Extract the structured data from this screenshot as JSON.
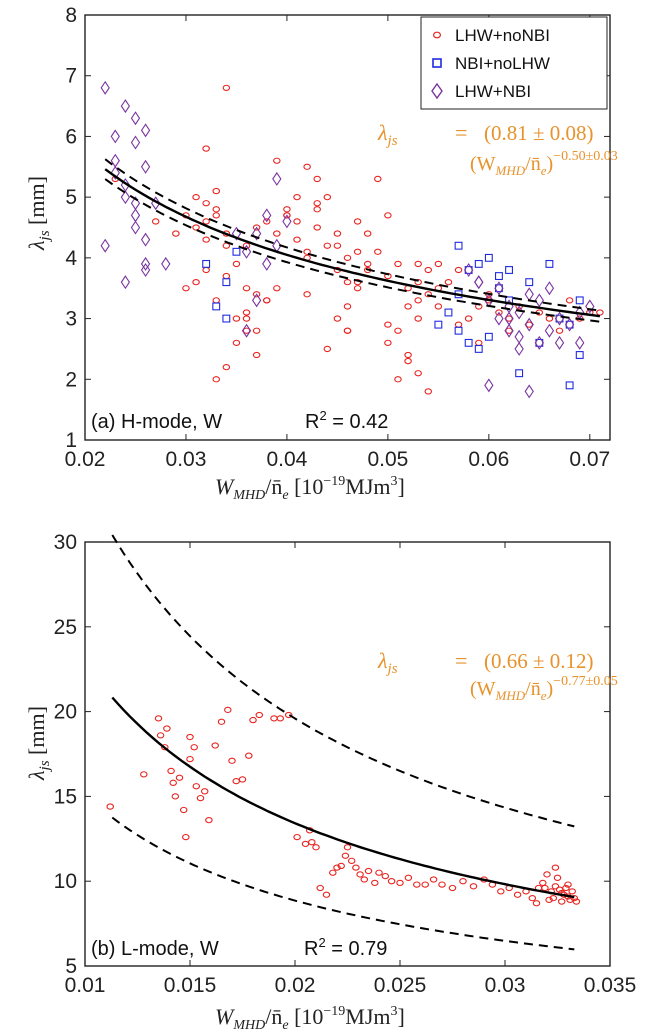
{
  "chart_data": [
    {
      "type": "scatter",
      "panel_label": "(a) H-mode, W",
      "r2_label": "R",
      "r2_sup": "2",
      "r2_value": " = 0.42",
      "xlabel_main": "W",
      "xlabel_sub": "MHD",
      "xlabel_tail": "/n̄",
      "xlabel_sub2": "e",
      "xlabel_units": " [10",
      "xlabel_exp": "−19",
      "xlabel_units2": "MJm",
      "xlabel_exp2": "3",
      "xlabel_close": "]",
      "ylabel_main": "λ",
      "ylabel_sub": "js",
      "ylabel_units": " [mm]",
      "xlim": [
        0.02,
        0.072
      ],
      "ylim": [
        1,
        8
      ],
      "xticks": [
        "0.02",
        "0.03",
        "0.04",
        "0.05",
        "0.06",
        "0.07"
      ],
      "yticks": [
        "1",
        "2",
        "3",
        "4",
        "5",
        "6",
        "7",
        "8"
      ],
      "legend_position": "top-right",
      "equation": {
        "lhs": "λ",
        "lhs_sub": "js",
        "eq_sign": "=",
        "coef": "(0.81 ± 0.08)",
        "base": "(W",
        "base_sub": "MHD",
        "base_tail": "/n̄",
        "base_sub2": "e",
        "base_close": ")",
        "exponent": "−0.50±0.03"
      },
      "fit": {
        "coef": 0.81,
        "exponent": -0.5,
        "x_range": [
          0.022,
          0.071
        ],
        "bands": [
          0.97,
          1.03
        ]
      },
      "series": [
        {
          "name": "LHW+noNBI",
          "marker": "circle",
          "color": "#e8231f",
          "x": [
            0.023,
            0.027,
            0.029,
            0.03,
            0.031,
            0.031,
            0.032,
            0.032,
            0.032,
            0.033,
            0.033,
            0.033,
            0.034,
            0.034,
            0.031,
            0.032,
            0.033,
            0.034,
            0.035,
            0.036,
            0.037,
            0.036,
            0.037,
            0.038,
            0.037,
            0.036,
            0.035,
            0.038,
            0.039,
            0.04,
            0.041,
            0.042,
            0.043,
            0.043,
            0.044,
            0.045,
            0.045,
            0.046,
            0.046,
            0.046,
            0.047,
            0.047,
            0.048,
            0.045,
            0.046,
            0.044,
            0.043,
            0.042,
            0.041,
            0.04,
            0.039,
            0.049,
            0.05,
            0.051,
            0.052,
            0.052,
            0.053,
            0.053,
            0.053,
            0.054,
            0.054,
            0.055,
            0.055,
            0.052,
            0.051,
            0.05,
            0.056,
            0.057,
            0.058,
            0.059,
            0.06,
            0.061,
            0.059,
            0.062,
            0.063,
            0.064,
            0.065,
            0.066,
            0.067,
            0.068,
            0.069,
            0.07,
            0.071,
            0.054,
            0.053,
            0.052,
            0.051,
            0.05,
            0.055,
            0.048,
            0.047,
            0.049,
            0.044,
            0.042,
            0.038,
            0.036,
            0.034,
            0.033,
            0.032,
            0.03,
            0.034,
            0.035,
            0.036,
            0.041,
            0.046,
            0.045,
            0.047,
            0.04,
            0.042,
            0.039,
            0.037,
            0.043,
            0.048,
            0.05,
            0.053,
            0.057,
            0.06,
            0.062
          ],
          "y": [
            5.3,
            4.6,
            4.4,
            4.7,
            5.0,
            4.5,
            4.9,
            4.3,
            4.6,
            4.8,
            4.7,
            5.1,
            4.4,
            4.2,
            3.6,
            3.8,
            3.3,
            3.7,
            3.9,
            4.2,
            4.5,
            3.1,
            2.8,
            3.3,
            2.4,
            3.5,
            2.6,
            4.6,
            4.4,
            4.8,
            4.3,
            4.1,
            4.5,
            4.9,
            4.2,
            3.8,
            4.4,
            4.0,
            3.6,
            3.2,
            4.1,
            3.5,
            3.8,
            3.0,
            2.8,
            2.5,
            5.3,
            5.5,
            5.0,
            4.7,
            5.6,
            4.1,
            3.7,
            3.9,
            3.5,
            3.2,
            3.6,
            3.3,
            3.0,
            3.4,
            3.8,
            3.2,
            3.5,
            2.4,
            2.0,
            2.6,
            3.6,
            3.8,
            3.0,
            3.2,
            3.3,
            3.1,
            2.6,
            3.0,
            3.2,
            2.9,
            3.1,
            3.0,
            2.8,
            3.3,
            3.0,
            3.1,
            3.1,
            1.8,
            2.1,
            2.3,
            2.8,
            2.9,
            3.9,
            4.4,
            4.6,
            5.3,
            5.0,
            3.4,
            3.3,
            2.8,
            2.2,
            2.0,
            5.8,
            3.5,
            6.8,
            3.0,
            3.0,
            4.6,
            2.8,
            4.2,
            3.6,
            4.7,
            4.0,
            3.5,
            3.4,
            4.8,
            3.9,
            4.7,
            3.9,
            2.9,
            3.4,
            2.8
          ],
          "_comment": ""
        },
        {
          "name": "NBI+noLHW",
          "marker": "square",
          "color": "#1f2be0",
          "x": [
            0.032,
            0.033,
            0.034,
            0.034,
            0.035,
            0.055,
            0.056,
            0.057,
            0.057,
            0.058,
            0.059,
            0.059,
            0.06,
            0.06,
            0.061,
            0.061,
            0.062,
            0.063,
            0.064,
            0.065,
            0.066,
            0.067,
            0.068,
            0.068,
            0.069,
            0.069,
            0.062,
            0.058,
            0.057
          ],
          "y": [
            3.9,
            3.2,
            3.6,
            3.0,
            4.1,
            2.9,
            3.1,
            3.4,
            4.2,
            3.8,
            3.9,
            2.5,
            4.0,
            2.7,
            3.5,
            3.7,
            3.8,
            2.1,
            3.6,
            2.6,
            3.9,
            3.0,
            2.9,
            1.9,
            3.3,
            2.4,
            3.3,
            2.6,
            2.8
          ]
        },
        {
          "name": "LHW+NBI",
          "marker": "diamond",
          "color": "#7a35a0",
          "x": [
            0.022,
            0.022,
            0.023,
            0.023,
            0.024,
            0.024,
            0.024,
            0.025,
            0.025,
            0.025,
            0.026,
            0.026,
            0.026,
            0.026,
            0.025,
            0.024,
            0.023,
            0.025,
            0.026,
            0.027,
            0.028,
            0.036,
            0.037,
            0.038,
            0.038,
            0.039,
            0.039,
            0.04,
            0.037,
            0.036,
            0.035,
            0.058,
            0.059,
            0.06,
            0.061,
            0.061,
            0.062,
            0.062,
            0.063,
            0.063,
            0.064,
            0.064,
            0.065,
            0.065,
            0.066,
            0.066,
            0.067,
            0.067,
            0.068,
            0.069,
            0.069,
            0.07,
            0.06,
            0.062,
            0.063,
            0.064,
            0.059
          ],
          "y": [
            6.8,
            4.2,
            6.0,
            5.4,
            6.5,
            5.0,
            3.6,
            6.3,
            5.9,
            4.7,
            6.1,
            4.3,
            3.9,
            5.5,
            4.9,
            5.2,
            5.6,
            4.5,
            3.8,
            4.9,
            3.9,
            4.1,
            4.4,
            4.7,
            3.9,
            5.3,
            4.2,
            4.6,
            3.3,
            2.8,
            4.4,
            3.8,
            3.6,
            3.3,
            3.5,
            3.0,
            2.8,
            3.2,
            2.5,
            3.1,
            1.8,
            2.9,
            2.6,
            3.3,
            2.8,
            3.5,
            2.6,
            3.0,
            2.9,
            3.1,
            2.6,
            3.2,
            1.9,
            3.0,
            2.7,
            3.4,
            3.6
          ]
        }
      ]
    },
    {
      "type": "scatter",
      "panel_label": "(b) L-mode, W",
      "r2_label": "R",
      "r2_sup": "2",
      "r2_value": " = 0.79",
      "xlabel_main": "W",
      "xlabel_sub": "MHD",
      "xlabel_tail": "/n̄",
      "xlabel_sub2": "e",
      "xlabel_units": " [10",
      "xlabel_exp": "−19",
      "xlabel_units2": "MJm",
      "xlabel_exp2": "3",
      "xlabel_close": "]",
      "ylabel_main": "λ",
      "ylabel_sub": "js",
      "ylabel_units": " [mm]",
      "xlim": [
        0.01,
        0.035
      ],
      "ylim": [
        5,
        30
      ],
      "xticks": [
        "0.01",
        "0.015",
        "0.02",
        "0.025",
        "0.03",
        "0.035"
      ],
      "yticks": [
        "5",
        "10",
        "15",
        "20",
        "25",
        "30"
      ],
      "equation": {
        "lhs": "λ",
        "lhs_sub": "js",
        "eq_sign": "=",
        "coef": "(0.66 ± 0.12)",
        "base": "(W",
        "base_sub": "MHD",
        "base_tail": "/n̄",
        "base_sub2": "e",
        "base_close": ")",
        "exponent": "−0.77±0.05"
      },
      "fit": {
        "coef": 0.66,
        "exponent": -0.77,
        "x_range": [
          0.0113,
          0.0333
        ],
        "bands": [
          0.66,
          1.46
        ]
      },
      "series": [
        {
          "name": "L-mode",
          "marker": "circle",
          "color": "#e8231f",
          "x": [
            0.0112,
            0.0128,
            0.0135,
            0.0136,
            0.0138,
            0.0139,
            0.0141,
            0.0142,
            0.0143,
            0.0145,
            0.0147,
            0.0148,
            0.015,
            0.015,
            0.0152,
            0.0153,
            0.0155,
            0.0157,
            0.0159,
            0.0162,
            0.0165,
            0.0168,
            0.017,
            0.0172,
            0.0175,
            0.0178,
            0.018,
            0.0183,
            0.019,
            0.0193,
            0.0197,
            0.0201,
            0.0205,
            0.0207,
            0.0208,
            0.021,
            0.0212,
            0.0215,
            0.0218,
            0.022,
            0.0222,
            0.0224,
            0.0225,
            0.0227,
            0.0229,
            0.0231,
            0.0233,
            0.0235,
            0.0238,
            0.024,
            0.0243,
            0.0246,
            0.025,
            0.0254,
            0.0258,
            0.0262,
            0.0266,
            0.027,
            0.0275,
            0.028,
            0.0285,
            0.029,
            0.0294,
            0.0298,
            0.0302,
            0.0306,
            0.031,
            0.0313,
            0.0316,
            0.0318,
            0.032,
            0.0322,
            0.0323,
            0.0324,
            0.0325,
            0.0326,
            0.0327,
            0.0328,
            0.0329,
            0.033,
            0.0331,
            0.0332,
            0.0333,
            0.0334,
            0.0321,
            0.0319,
            0.0324,
            0.0327,
            0.033,
            0.0315
          ],
          "y": [
            14.4,
            16.3,
            19.6,
            18.6,
            17.9,
            19.0,
            16.5,
            15.8,
            15.0,
            16.1,
            14.2,
            12.6,
            17.2,
            18.5,
            17.9,
            15.6,
            14.9,
            15.3,
            13.6,
            18.0,
            19.4,
            20.1,
            17.1,
            15.9,
            16.0,
            17.4,
            19.5,
            19.8,
            19.6,
            19.6,
            19.8,
            12.6,
            12.2,
            13.0,
            12.3,
            12.0,
            9.6,
            9.2,
            10.5,
            10.8,
            10.9,
            11.5,
            12.0,
            11.2,
            10.8,
            10.4,
            10.1,
            10.6,
            9.9,
            10.5,
            10.3,
            10.0,
            9.9,
            10.2,
            9.8,
            9.8,
            10.1,
            9.8,
            9.6,
            10.0,
            9.7,
            10.1,
            9.8,
            9.4,
            9.6,
            9.2,
            9.4,
            9.0,
            9.6,
            9.9,
            10.4,
            9.4,
            9.0,
            9.7,
            10.2,
            9.5,
            8.8,
            9.2,
            9.6,
            9.1,
            8.9,
            9.4,
            9.0,
            8.8,
            8.9,
            9.6,
            10.8,
            9.3,
            9.8,
            8.7
          ]
        }
      ]
    }
  ]
}
